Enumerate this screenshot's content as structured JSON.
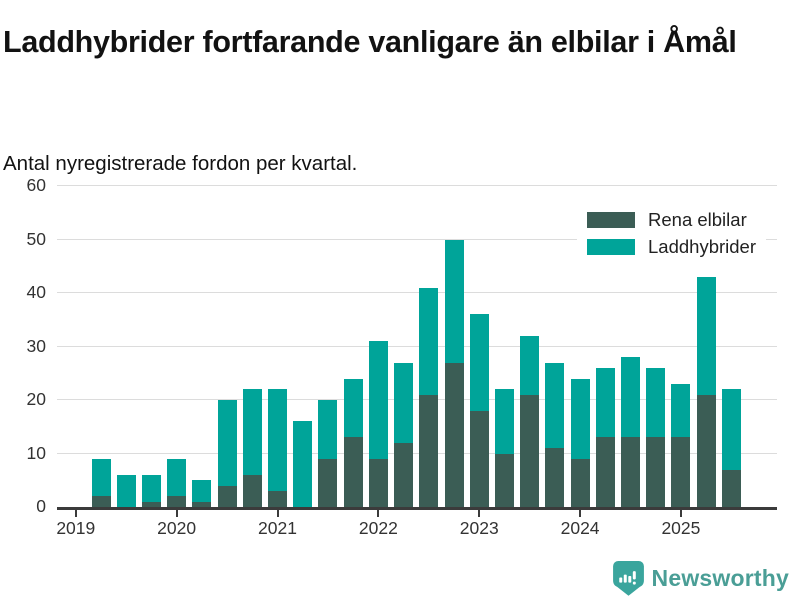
{
  "header": {
    "title": "Laddhybrider fortfarande vanligare än elbilar i Åmål",
    "subtitle": "Antal nyregistrerade fordon per kvartal."
  },
  "legend": {
    "items": [
      {
        "label": "Rena elbilar",
        "color": "#3b5d55"
      },
      {
        "label": "Laddhybrider",
        "color": "#00a499"
      }
    ]
  },
  "footer": {
    "brand": "Newsworthy",
    "brand_color": "#4a9e96"
  },
  "colors": {
    "elbilar": "#3b5d55",
    "laddhybrider": "#00a499",
    "axis": "#3b3b3b",
    "grid": "#dcdcdc",
    "tick_text": "#333333"
  },
  "chart_data": {
    "type": "bar",
    "stacked": true,
    "title": "Laddhybrider fortfarande vanligare än elbilar i Åmål",
    "subtitle": "Antal nyregistrerade fordon per kvartal.",
    "categories": [
      "2019 Q2",
      "2019 Q3",
      "2019 Q4",
      "2020 Q1",
      "2020 Q2",
      "2020 Q3",
      "2020 Q4",
      "2021 Q1",
      "2021 Q2",
      "2021 Q3",
      "2021 Q4",
      "2022 Q1",
      "2022 Q2",
      "2022 Q3",
      "2022 Q4",
      "2023 Q1",
      "2023 Q2",
      "2023 Q3",
      "2023 Q4",
      "2024 Q1",
      "2024 Q2",
      "2024 Q3",
      "2024 Q4",
      "2025 Q1",
      "2025 Q2",
      "2025 Q3"
    ],
    "series": [
      {
        "name": "Rena elbilar",
        "color": "#3b5d55",
        "values": [
          2,
          0,
          1,
          2,
          1,
          4,
          6,
          3,
          0,
          9,
          13,
          9,
          12,
          21,
          27,
          18,
          10,
          21,
          11,
          9,
          13,
          13,
          13,
          13,
          21,
          7
        ]
      },
      {
        "name": "Laddhybrider",
        "color": "#00a499",
        "values": [
          7,
          6,
          5,
          7,
          4,
          16,
          16,
          19,
          16,
          11,
          11,
          22,
          15,
          20,
          23,
          18,
          12,
          11,
          16,
          15,
          13,
          15,
          13,
          10,
          22,
          15
        ]
      }
    ],
    "stack_totals": [
      9,
      6,
      6,
      9,
      5,
      20,
      22,
      22,
      16,
      20,
      24,
      31,
      27,
      41,
      50,
      36,
      22,
      32,
      27,
      24,
      26,
      28,
      26,
      23,
      43,
      22
    ],
    "xticks": [
      "2019",
      "2020",
      "2021",
      "2022",
      "2023",
      "2024",
      "2025"
    ],
    "yticks": [
      0,
      10,
      20,
      30,
      40,
      50,
      60
    ],
    "ylim": [
      0,
      60
    ],
    "xlabel": "",
    "ylabel": "",
    "grid": true,
    "legend_position": "top-right"
  }
}
